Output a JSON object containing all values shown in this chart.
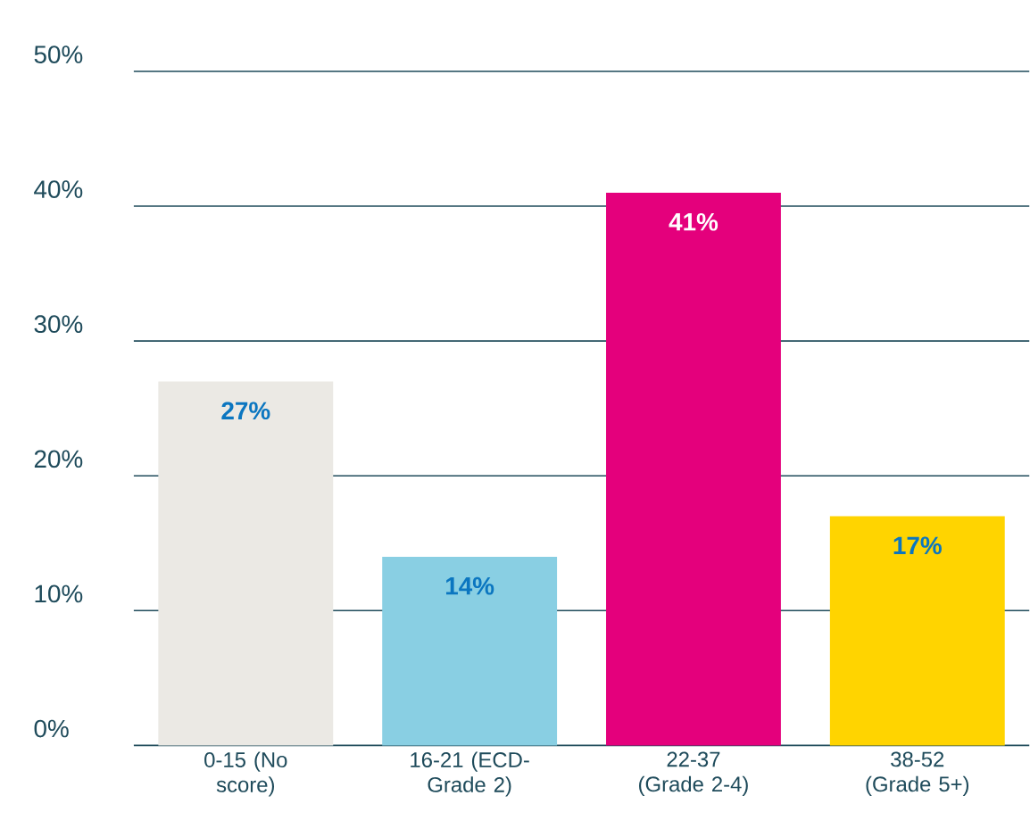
{
  "chart_data": {
    "type": "bar",
    "categories": [
      "0-15 (No score)",
      "16-21 (ECD-Grade 2)",
      "22-37 (Grade 2-4)",
      "38-52 (Grade 5+)"
    ],
    "values": [
      27,
      14,
      41,
      17
    ],
    "value_labels": [
      "27%",
      "14%",
      "41%",
      "17%"
    ],
    "colors": [
      "#ebe9e4",
      "#89cfe3",
      "#e4007c",
      "#ffd400"
    ],
    "ylim": [
      0,
      50
    ],
    "yticks": [
      {
        "value": 0,
        "label": "0%"
      },
      {
        "value": 10,
        "label": "10%"
      },
      {
        "value": 20,
        "label": "20%"
      },
      {
        "value": 30,
        "label": "30%"
      },
      {
        "value": 40,
        "label": "40%"
      },
      {
        "value": 50,
        "label": "50%"
      }
    ],
    "grid": "y"
  }
}
